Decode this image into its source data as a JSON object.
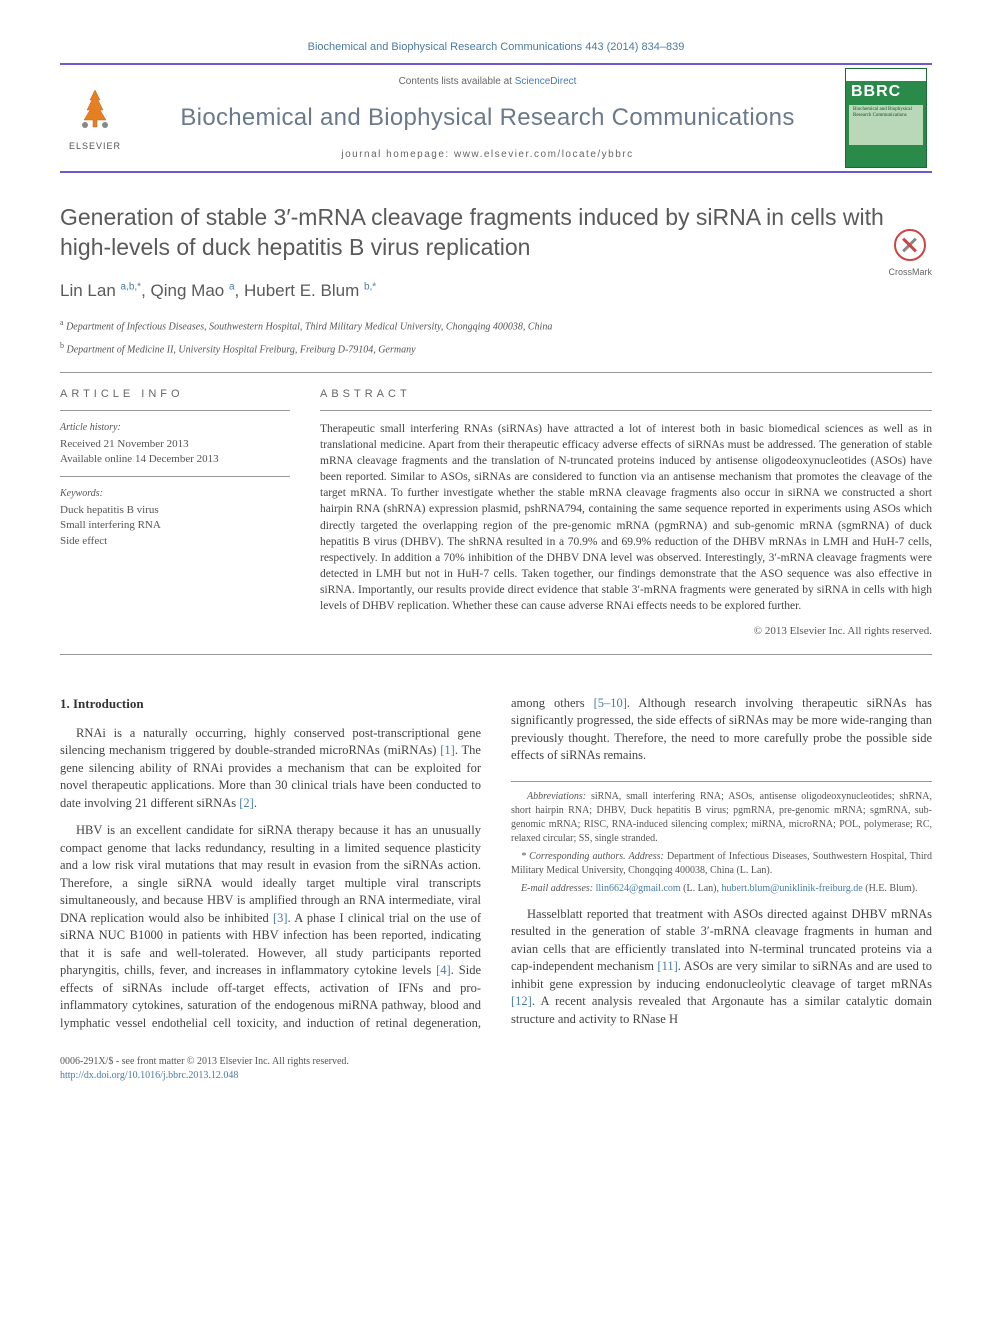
{
  "citation": "Biochemical and Biophysical Research Communications 443 (2014) 834–839",
  "header": {
    "contents_text": "Contents lists available at ",
    "contents_link": "ScienceDirect",
    "journal_name": "Biochemical and Biophysical Research Communications",
    "homepage_label": "journal homepage: ",
    "homepage_url": "www.elsevier.com/locate/ybbrc",
    "publisher": "ELSEVIER",
    "cover_letters": "BBRC",
    "cover_subtitle": "Biochemical and Biophysical Research Communications"
  },
  "crossmark": "CrossMark",
  "article": {
    "title": "Generation of stable 3′-mRNA cleavage fragments induced by siRNA in cells with high-levels of duck hepatitis B virus replication",
    "authors_html": "Lin Lan <sup>a,b,*</sup>, Qing Mao <sup>a</sup>, Hubert E. Blum <sup>b,*</sup>",
    "affiliations": [
      "Department of Infectious Diseases, Southwestern Hospital, Third Military Medical University, Chongqing 400038, China",
      "Department of Medicine II, University Hospital Freiburg, Freiburg D-79104, Germany"
    ]
  },
  "info": {
    "heading": "ARTICLE INFO",
    "history_label": "Article history:",
    "received": "Received 21 November 2013",
    "available": "Available online 14 December 2013",
    "keywords_label": "Keywords:",
    "keywords": [
      "Duck hepatitis B virus",
      "Small interfering RNA",
      "Side effect"
    ]
  },
  "abstract": {
    "heading": "ABSTRACT",
    "text": "Therapeutic small interfering RNAs (siRNAs) have attracted a lot of interest both in basic biomedical sciences as well as in translational medicine. Apart from their therapeutic efficacy adverse effects of siRNAs must be addressed. The generation of stable mRNA cleavage fragments and the translation of N-truncated proteins induced by antisense oligodeoxynucleotides (ASOs) have been reported. Similar to ASOs, siRNAs are considered to function via an antisense mechanism that promotes the cleavage of the target mRNA. To further investigate whether the stable mRNA cleavage fragments also occur in siRNA we constructed a short hairpin RNA (shRNA) expression plasmid, pshRNA794, containing the same sequence reported in experiments using ASOs which directly targeted the overlapping region of the pre-genomic mRNA (pgmRNA) and sub-genomic mRNA (sgmRNA) of duck hepatitis B virus (DHBV). The shRNA resulted in a 70.9% and 69.9% reduction of the DHBV mRNAs in LMH and HuH-7 cells, respectively. In addition a 70% inhibition of the DHBV DNA level was observed. Interestingly, 3′-mRNA cleavage fragments were detected in LMH but not in HuH-7 cells. Taken together, our findings demonstrate that the ASO sequence was also effective in siRNA. Importantly, our results provide direct evidence that stable 3′-mRNA fragments were generated by siRNA in cells with high levels of DHBV replication. Whether these can cause adverse RNAi effects needs to be explored further.",
    "copyright": "© 2013 Elsevier Inc. All rights reserved."
  },
  "body": {
    "intro_heading": "1. Introduction",
    "paragraphs": [
      "RNAi is a naturally occurring, highly conserved post-transcriptional gene silencing mechanism triggered by double-stranded microRNAs (miRNAs) [1]. The gene silencing ability of RNAi provides a mechanism that can be exploited for novel therapeutic applications. More than 30 clinical trials have been conducted to date involving 21 different siRNAs [2].",
      "HBV is an excellent candidate for siRNA therapy because it has an unusually compact genome that lacks redundancy, resulting in a limited sequence plasticity and a low risk viral mutations that may result in evasion from the siRNAs action. Therefore, a single siRNA would ideally target multiple viral transcripts simultaneously, and because HBV is amplified through an RNA intermediate, viral DNA replication would also be inhibited [3]. A phase I clinical trial on the use of siRNA NUC B1000 in patients with HBV infection has been reported, indicating that it is safe and well-tolerated. However, all study participants reported pharyngitis, chills, fever, and increases in inflammatory cytokine levels [4]. Side effects of siRNAs include off-target effects, activation of IFNs and pro-inflammatory cytokines, saturation of the endogenous miRNA pathway, blood and lymphatic vessel endothelial cell toxicity, and induction of retinal degeneration, among others [5–10]. Although research involving therapeutic siRNAs has significantly progressed, the side effects of siRNAs may be more wide-ranging than previously thought. Therefore, the need to more carefully probe the possible side effects of siRNAs remains.",
      "Hasselblatt reported that treatment with ASOs directed against DHBV mRNAs resulted in the generation of stable 3′-mRNA cleavage fragments in human and avian cells that are efficiently translated into N-terminal truncated proteins via a cap-independent mechanism [11]. ASOs are very similar to siRNAs and are used to inhibit gene expression by inducing endonucleolytic cleavage of target mRNAs [12]. A recent analysis revealed that Argonaute has a similar catalytic domain structure and activity to RNase H"
    ]
  },
  "footnotes": {
    "abbreviations_label": "Abbreviations:",
    "abbreviations": "siRNA, small interfering RNA; ASOs, antisense oligodeoxynucleotides; shRNA, short hairpin RNA; DHBV, Duck hepatitis B virus; pgmRNA, pre-genomic mRNA; sgmRNA, sub-genomic mRNA; RISC, RNA-induced silencing complex; miRNA, microRNA; POL, polymerase; RC, relaxed circular; SS, single stranded.",
    "corresponding_label": "* Corresponding authors. Address:",
    "corresponding": "Department of Infectious Diseases, Southwestern Hospital, Third Military Medical University, Chongqing 400038, China (L. Lan).",
    "email_label": "E-mail addresses:",
    "email1": "llin6624@gmail.com",
    "email1_name": "(L. Lan),",
    "email2": "hubert.blum@uniklinik-freiburg.de",
    "email2_name": "(H.E. Blum)."
  },
  "footer": {
    "issn": "0006-291X/$ - see front matter © 2013 Elsevier Inc. All rights reserved.",
    "doi": "http://dx.doi.org/10.1016/j.bbrc.2013.12.048"
  },
  "colors": {
    "link": "#4a7ba6",
    "border": "#6a5acd",
    "text": "#444444",
    "heading": "#5a5a5a",
    "cover_bg": "#2a8a4a"
  }
}
